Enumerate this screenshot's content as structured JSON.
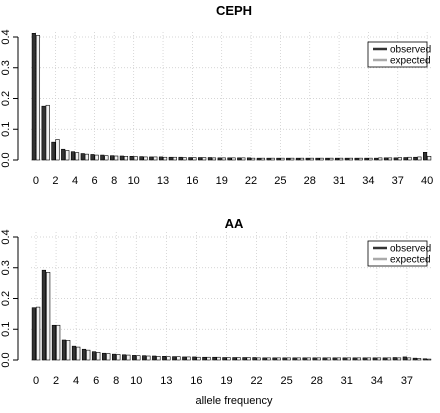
{
  "colors": {
    "observed": "#333333",
    "expected": "#f2f2f2",
    "expected_legend": "#aaaaaa",
    "bar_outline": "#000000",
    "grid": "#c8c8c8"
  },
  "chart_data": [
    {
      "type": "bar",
      "title": "CEPH",
      "xlabel": "",
      "ylabel": "",
      "ylim": [
        0,
        0.42
      ],
      "yticks": [
        "0.0",
        "0.1",
        "0.2",
        "0.3",
        "0.4"
      ],
      "ytick_values": [
        0,
        0.1,
        0.2,
        0.3,
        0.4
      ],
      "xtick_labels": [
        "0",
        "2",
        "4",
        "6",
        "8",
        "10",
        "13",
        "16",
        "19",
        "22",
        "25",
        "28",
        "31",
        "34",
        "37",
        "40"
      ],
      "xtick_indices": [
        0,
        2,
        4,
        6,
        8,
        10,
        13,
        16,
        19,
        22,
        25,
        28,
        31,
        34,
        37,
        40
      ],
      "grid": true,
      "legend_position": "top-right",
      "categories": [
        0,
        1,
        2,
        3,
        4,
        5,
        6,
        7,
        8,
        9,
        10,
        11,
        12,
        13,
        14,
        15,
        16,
        17,
        18,
        19,
        20,
        21,
        22,
        23,
        24,
        25,
        26,
        27,
        28,
        29,
        30,
        31,
        32,
        33,
        34,
        35,
        36,
        37,
        38,
        39,
        40
      ],
      "series": [
        {
          "name": "observed",
          "values": [
            0.412,
            0.175,
            0.058,
            0.035,
            0.027,
            0.021,
            0.018,
            0.016,
            0.014,
            0.013,
            0.012,
            0.011,
            0.01,
            0.01,
            0.009,
            0.009,
            0.008,
            0.008,
            0.008,
            0.007,
            0.007,
            0.007,
            0.007,
            0.006,
            0.006,
            0.006,
            0.006,
            0.006,
            0.006,
            0.006,
            0.006,
            0.006,
            0.006,
            0.006,
            0.006,
            0.006,
            0.007,
            0.007,
            0.008,
            0.009,
            0.025
          ]
        },
        {
          "name": "expected",
          "values": [
            0.405,
            0.178,
            0.067,
            0.031,
            0.024,
            0.019,
            0.016,
            0.014,
            0.013,
            0.012,
            0.011,
            0.01,
            0.01,
            0.009,
            0.009,
            0.008,
            0.008,
            0.008,
            0.007,
            0.007,
            0.007,
            0.007,
            0.006,
            0.006,
            0.006,
            0.006,
            0.006,
            0.006,
            0.006,
            0.006,
            0.006,
            0.006,
            0.006,
            0.006,
            0.006,
            0.007,
            0.007,
            0.008,
            0.009,
            0.01,
            0.012
          ]
        }
      ]
    },
    {
      "type": "bar",
      "title": "AA",
      "xlabel": "allele frequency",
      "ylabel": "",
      "ylim": [
        0,
        0.42
      ],
      "yticks": [
        "0.0",
        "0.1",
        "0.2",
        "0.3",
        "0.4"
      ],
      "ytick_values": [
        0,
        0.1,
        0.2,
        0.3,
        0.4
      ],
      "xtick_labels": [
        "0",
        "2",
        "4",
        "6",
        "8",
        "10",
        "13",
        "16",
        "19",
        "22",
        "25",
        "28",
        "31",
        "34",
        "37"
      ],
      "xtick_indices": [
        0,
        2,
        4,
        6,
        8,
        10,
        13,
        16,
        19,
        22,
        25,
        28,
        31,
        34,
        37
      ],
      "grid": true,
      "legend_position": "top-right",
      "categories": [
        0,
        1,
        2,
        3,
        4,
        5,
        6,
        7,
        8,
        9,
        10,
        11,
        12,
        13,
        14,
        15,
        16,
        17,
        18,
        19,
        20,
        21,
        22,
        23,
        24,
        25,
        26,
        27,
        28,
        29,
        30,
        31,
        32,
        33,
        34,
        35,
        36,
        37,
        38,
        39
      ],
      "series": [
        {
          "name": "observed",
          "values": [
            0.17,
            0.292,
            0.113,
            0.065,
            0.045,
            0.035,
            0.027,
            0.022,
            0.019,
            0.017,
            0.015,
            0.014,
            0.013,
            0.012,
            0.011,
            0.01,
            0.01,
            0.009,
            0.009,
            0.008,
            0.008,
            0.008,
            0.008,
            0.007,
            0.007,
            0.007,
            0.007,
            0.007,
            0.007,
            0.007,
            0.007,
            0.007,
            0.007,
            0.007,
            0.007,
            0.007,
            0.008,
            0.01,
            0.006,
            0.004
          ]
        },
        {
          "name": "expected",
          "values": [
            0.172,
            0.285,
            0.113,
            0.064,
            0.042,
            0.032,
            0.025,
            0.021,
            0.018,
            0.016,
            0.014,
            0.013,
            0.012,
            0.011,
            0.011,
            0.01,
            0.009,
            0.009,
            0.009,
            0.008,
            0.008,
            0.008,
            0.007,
            0.007,
            0.007,
            0.007,
            0.007,
            0.007,
            0.007,
            0.007,
            0.007,
            0.007,
            0.007,
            0.007,
            0.007,
            0.007,
            0.007,
            0.007,
            0.005,
            0.003
          ]
        }
      ]
    }
  ]
}
